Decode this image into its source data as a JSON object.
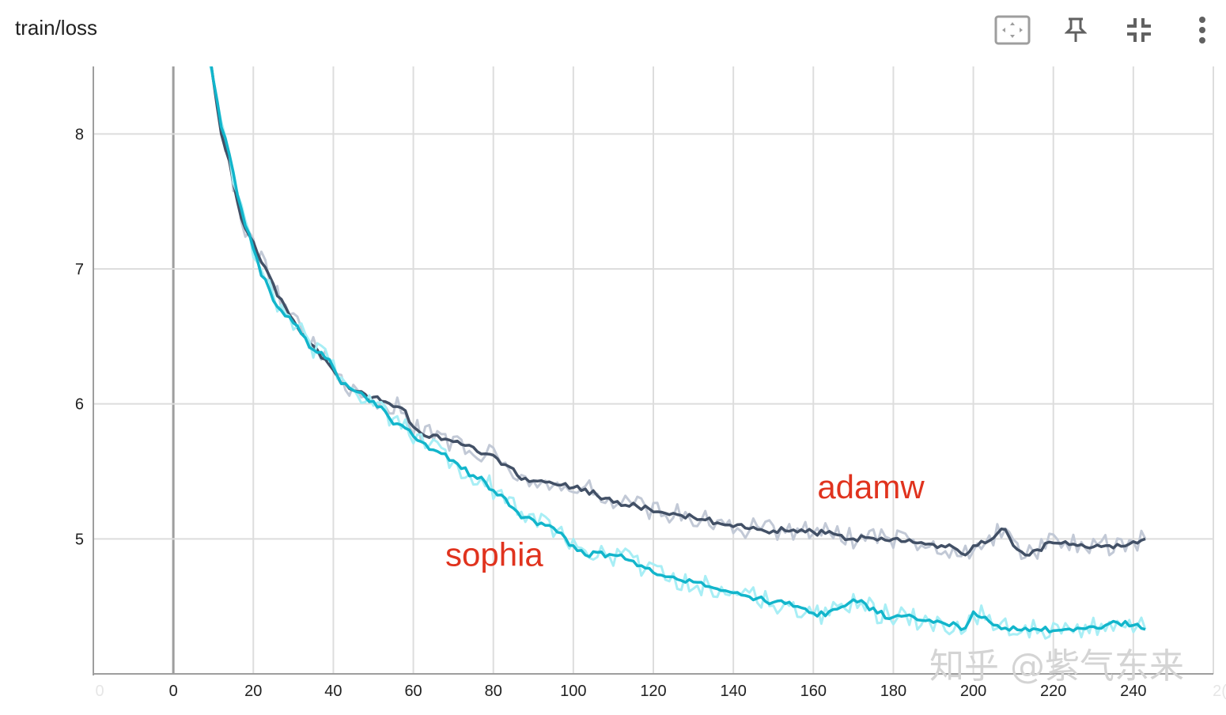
{
  "card": {
    "title": "train/loss"
  },
  "toolbar": [
    {
      "name": "fit-domain-button",
      "icon": "fit-to-data-icon"
    },
    {
      "name": "pin-button",
      "icon": "pin-icon"
    },
    {
      "name": "collapse-button",
      "icon": "collapse-icon"
    },
    {
      "name": "more-options-button",
      "icon": "more-vert-icon"
    }
  ],
  "watermark": "知乎 @紫气东来",
  "chart_data": {
    "type": "line",
    "title": "train/loss",
    "xlabel": "",
    "ylabel": "",
    "xlim": [
      -20,
      260
    ],
    "ylim": [
      4.0,
      8.5
    ],
    "xticks": [
      0,
      20,
      40,
      60,
      80,
      100,
      120,
      140,
      160,
      180,
      200,
      220,
      240
    ],
    "xticks_faded": [
      -20,
      260
    ],
    "xtick_labels_faded": [
      "0",
      "2("
    ],
    "yticks": [
      5,
      6,
      7,
      8
    ],
    "grid": true,
    "legend": "none",
    "colors": {
      "adamw": "#425066",
      "adamw_raw": "#c2c9d6",
      "sophia": "#12b5cb",
      "sophia_raw": "#a8eef5",
      "grid": "#dddddd",
      "axis": "#9e9e9e",
      "label": "#e0331e"
    },
    "series": [
      {
        "name": "adamw",
        "label_at": [
          161,
          5.3
        ],
        "x": [
          9,
          10,
          12,
          14,
          16,
          18,
          20,
          22,
          24,
          26,
          28,
          30,
          32,
          34,
          36,
          38,
          40,
          42,
          45,
          48,
          50,
          52,
          55,
          58,
          60,
          62,
          65,
          68,
          70,
          72,
          75,
          78,
          80,
          83,
          86,
          88,
          90,
          93,
          96,
          100,
          103,
          106,
          110,
          113,
          116,
          120,
          123,
          126,
          130,
          133,
          136,
          140,
          143,
          146,
          150,
          153,
          156,
          160,
          163,
          166,
          170,
          173,
          176,
          180,
          183,
          186,
          190,
          193,
          196,
          198,
          200,
          203,
          206,
          208,
          210,
          213,
          216,
          220,
          223,
          226,
          230,
          233,
          236,
          240,
          243
        ],
        "y": [
          8.6,
          8.4,
          8.0,
          7.8,
          7.5,
          7.3,
          7.2,
          7.05,
          6.95,
          6.8,
          6.72,
          6.62,
          6.52,
          6.45,
          6.4,
          6.33,
          6.25,
          6.15,
          6.1,
          6.07,
          6.05,
          6.02,
          5.98,
          5.95,
          5.83,
          5.78,
          5.77,
          5.74,
          5.72,
          5.7,
          5.68,
          5.63,
          5.62,
          5.55,
          5.47,
          5.45,
          5.43,
          5.42,
          5.4,
          5.38,
          5.37,
          5.32,
          5.27,
          5.25,
          5.24,
          5.2,
          5.19,
          5.18,
          5.16,
          5.14,
          5.12,
          5.09,
          5.08,
          5.07,
          5.06,
          5.06,
          5.05,
          5.05,
          5.04,
          5.03,
          5.0,
          5.01,
          4.99,
          5.0,
          4.98,
          4.97,
          4.96,
          4.94,
          4.92,
          4.88,
          4.95,
          4.97,
          5.04,
          5.07,
          4.95,
          4.88,
          4.92,
          4.97,
          4.98,
          4.95,
          4.94,
          4.95,
          4.96,
          4.98,
          5.0
        ]
      },
      {
        "name": "sophia",
        "label_at": [
          68,
          4.8
        ],
        "x": [
          9,
          10,
          12,
          14,
          16,
          18,
          20,
          22,
          24,
          26,
          28,
          30,
          32,
          34,
          36,
          38,
          40,
          42,
          45,
          48,
          50,
          52,
          55,
          58,
          60,
          62,
          65,
          68,
          70,
          72,
          75,
          78,
          80,
          83,
          86,
          88,
          90,
          93,
          96,
          100,
          103,
          106,
          110,
          113,
          116,
          120,
          123,
          126,
          130,
          133,
          136,
          140,
          143,
          146,
          150,
          153,
          156,
          160,
          163,
          166,
          170,
          173,
          176,
          180,
          183,
          186,
          190,
          193,
          196,
          198,
          200,
          203,
          206,
          208,
          210,
          213,
          216,
          220,
          223,
          226,
          230,
          233,
          236,
          240,
          243
        ],
        "y": [
          8.6,
          8.4,
          8.05,
          7.85,
          7.55,
          7.32,
          7.15,
          6.95,
          6.85,
          6.72,
          6.65,
          6.6,
          6.52,
          6.42,
          6.38,
          6.34,
          6.27,
          6.15,
          6.1,
          6.05,
          6.02,
          5.98,
          5.85,
          5.82,
          5.76,
          5.72,
          5.66,
          5.63,
          5.58,
          5.52,
          5.47,
          5.42,
          5.36,
          5.3,
          5.2,
          5.16,
          5.14,
          5.1,
          5.05,
          4.95,
          4.88,
          4.9,
          4.88,
          4.85,
          4.8,
          4.75,
          4.72,
          4.7,
          4.68,
          4.65,
          4.63,
          4.6,
          4.58,
          4.56,
          4.53,
          4.52,
          4.5,
          4.45,
          4.43,
          4.48,
          4.55,
          4.52,
          4.45,
          4.42,
          4.43,
          4.4,
          4.38,
          4.37,
          4.36,
          4.34,
          4.46,
          4.42,
          4.36,
          4.34,
          4.35,
          4.34,
          4.33,
          4.32,
          4.33,
          4.34,
          4.35,
          4.36,
          4.38,
          4.36,
          4.33
        ]
      }
    ]
  }
}
